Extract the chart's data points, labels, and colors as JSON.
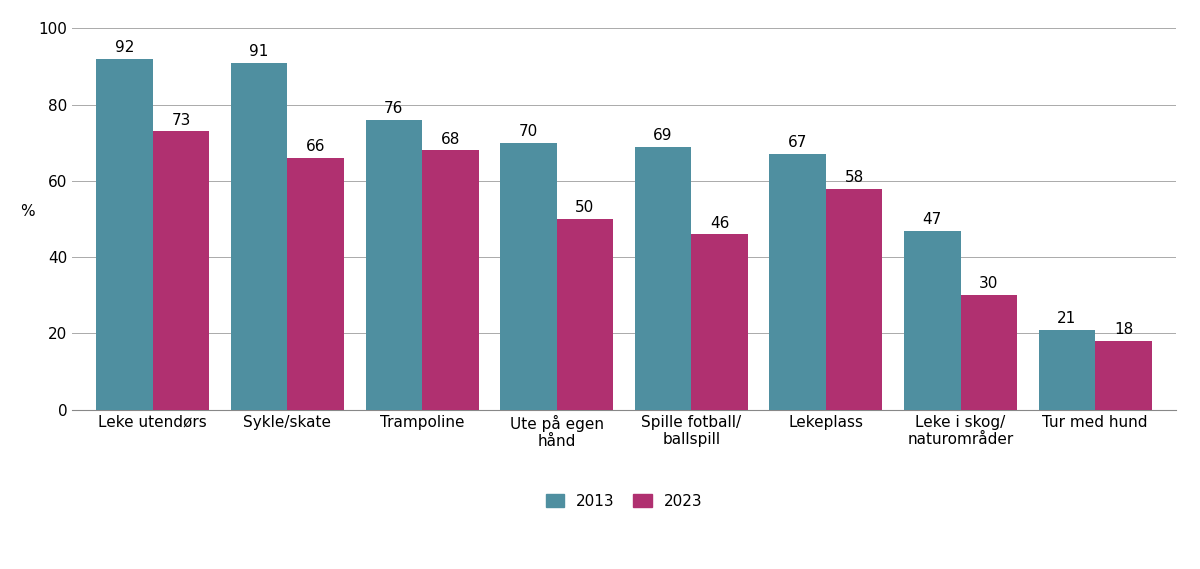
{
  "categories": [
    "Leke utendørs",
    "Sykle/skate",
    "Trampoline",
    "Ute på egen\nhånd",
    "Spille fotball/\nballspill",
    "Lekeplass",
    "Leke i skog/\nnaturområder",
    "Tur med hund"
  ],
  "values_2013": [
    92,
    91,
    76,
    70,
    69,
    67,
    47,
    21
  ],
  "values_2023": [
    73,
    66,
    68,
    50,
    46,
    58,
    30,
    18
  ],
  "color_2013": "#4f8fa0",
  "color_2023": "#b03070",
  "ylabel": "%",
  "ylim": [
    0,
    100
  ],
  "yticks": [
    0,
    20,
    40,
    60,
    80,
    100
  ],
  "legend_labels": [
    "2013",
    "2023"
  ],
  "bar_width": 0.42,
  "label_fontsize": 11,
  "tick_fontsize": 11,
  "legend_fontsize": 11,
  "grid_color": "#aaaaaa",
  "grid_linewidth": 0.7
}
